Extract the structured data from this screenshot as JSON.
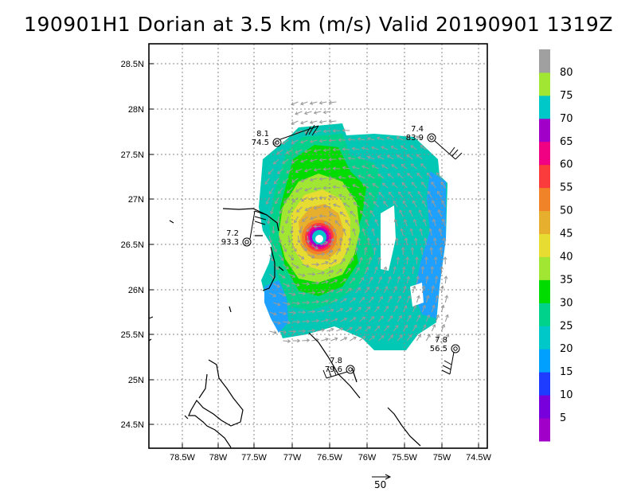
{
  "title": "190901H1 Dorian at 3.5 km (m/s) Valid 20190901  1319Z",
  "map": {
    "lat_ticks": [
      "28.5N",
      "28N",
      "27.5N",
      "27N",
      "26.5N",
      "26N",
      "25.5N",
      "25N",
      "24.5N"
    ],
    "lon_ticks": [
      "78.5W",
      "78W",
      "77.5W",
      "77W",
      "76.5W",
      "76W",
      "75.5W",
      "75W",
      "74.5W"
    ],
    "colorbar": {
      "levels": [
        "5",
        "10",
        "15",
        "20",
        "25",
        "30",
        "35",
        "40",
        "45",
        "50",
        "55",
        "60",
        "65",
        "70",
        "75",
        "80"
      ],
      "colors": [
        "#a000c8",
        "#7800dc",
        "#1e3cff",
        "#00a0ff",
        "#00c8c8",
        "#00d28c",
        "#00dc00",
        "#a0e632",
        "#e6dc32",
        "#e6af2d",
        "#f08228",
        "#fa3c3c",
        "#f00082",
        "#a000c8",
        "#00c8c8",
        "#a0e632",
        "#a0a0a0"
      ]
    },
    "stations": [
      {
        "top": "8.1",
        "bottom": "74.5"
      },
      {
        "top": "7.4",
        "bottom": "83.9"
      },
      {
        "top": "7.2",
        "bottom": "93.3"
      },
      {
        "top": "7.8",
        "bottom": "79.6"
      },
      {
        "top": "7.8",
        "bottom": "56.5"
      }
    ],
    "reference_vector_label": "50"
  }
}
